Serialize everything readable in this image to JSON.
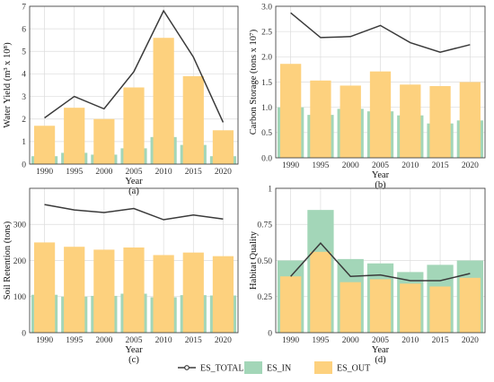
{
  "colors": {
    "es_in": "#a3d6b8",
    "es_out": "#fdd17e",
    "es_total": "#3a3a3a",
    "grid": "#dcdcdc",
    "panel_border": "#333333"
  },
  "legend": {
    "items": [
      {
        "label": "ES_TOTAL",
        "kind": "line"
      },
      {
        "label": "ES_IN",
        "kind": "box_in"
      },
      {
        "label": "ES_OUT",
        "kind": "box_out"
      }
    ]
  },
  "chart_data": [
    {
      "type": "bar",
      "panel_label": "(a)",
      "xlabel": "Year",
      "ylabel": "Water Yield (m³ x 10⁸)",
      "categories": [
        "1990",
        "1995",
        "2000",
        "2005",
        "2010",
        "2015",
        "2020"
      ],
      "ylim": [
        0,
        7
      ],
      "yticks": [
        0,
        1,
        2,
        3,
        4,
        5,
        6,
        7
      ],
      "ytick_labels": [
        "0",
        "1",
        "2",
        "3",
        "4",
        "5",
        "6",
        "7"
      ],
      "grid": true,
      "series": [
        {
          "name": "ES_IN",
          "kind": "bar",
          "values": [
            0.35,
            0.5,
            0.42,
            0.7,
            1.2,
            0.85,
            0.35
          ]
        },
        {
          "name": "ES_OUT",
          "kind": "bar",
          "values": [
            1.7,
            2.5,
            2.0,
            3.4,
            5.6,
            3.9,
            1.5
          ]
        },
        {
          "name": "ES_TOTAL",
          "kind": "line",
          "values": [
            2.05,
            3.0,
            2.45,
            4.1,
            6.8,
            4.75,
            1.85
          ]
        }
      ]
    },
    {
      "type": "bar",
      "panel_label": "(b)",
      "xlabel": "Year",
      "ylabel": "Carbon Storage (tons x 10⁷)",
      "categories": [
        "1990",
        "1995",
        "2000",
        "2005",
        "2010",
        "2015",
        "2020"
      ],
      "ylim": [
        0,
        3.0
      ],
      "yticks": [
        0,
        0.5,
        1.0,
        1.5,
        2.0,
        2.5,
        3.0
      ],
      "ytick_labels": [
        "0.0",
        "0.5",
        "1.0",
        "1.5",
        "2.0",
        "2.5",
        "3.0"
      ],
      "grid": true,
      "series": [
        {
          "name": "ES_IN",
          "kind": "bar",
          "values": [
            1.0,
            0.85,
            0.97,
            0.92,
            0.84,
            0.68,
            0.74
          ]
        },
        {
          "name": "ES_OUT",
          "kind": "bar",
          "values": [
            1.86,
            1.53,
            1.43,
            1.71,
            1.45,
            1.42,
            1.5
          ]
        },
        {
          "name": "ES_TOTAL",
          "kind": "line",
          "values": [
            2.87,
            2.38,
            2.4,
            2.62,
            2.28,
            2.09,
            2.24
          ]
        }
      ]
    },
    {
      "type": "bar",
      "panel_label": "(c)",
      "xlabel": "Year",
      "ylabel": "Soil Retention (tons)",
      "categories": [
        "1990",
        "1995",
        "2000",
        "2005",
        "2010",
        "2015",
        "2020"
      ],
      "ylim": [
        0,
        400
      ],
      "yticks": [
        0,
        100,
        200,
        300
      ],
      "ytick_labels": [
        "0",
        "100",
        "200",
        "300"
      ],
      "grid": true,
      "series": [
        {
          "name": "ES_IN",
          "kind": "bar",
          "values": [
            105,
            100,
            102,
            108,
            98,
            104,
            103
          ]
        },
        {
          "name": "ES_OUT",
          "kind": "bar",
          "values": [
            250,
            238,
            230,
            236,
            215,
            222,
            212
          ]
        },
        {
          "name": "ES_TOTAL",
          "kind": "line",
          "values": [
            355,
            340,
            333,
            344,
            313,
            326,
            315
          ]
        }
      ]
    },
    {
      "type": "bar",
      "panel_label": "(d)",
      "xlabel": "Year",
      "ylabel": "Habitat Quality",
      "categories": [
        "1990",
        "1995",
        "2000",
        "2005",
        "2010",
        "2015",
        "2020"
      ],
      "ylim": [
        0,
        1.0
      ],
      "yticks": [
        0,
        0.25,
        0.5,
        0.75,
        1.0
      ],
      "ytick_labels": [
        "0",
        "0.25",
        "0.50",
        "0.75",
        "1"
      ],
      "grid": true,
      "series": [
        {
          "name": "ES_IN",
          "kind": "bar",
          "values": [
            0.5,
            0.85,
            0.51,
            0.48,
            0.42,
            0.47,
            0.5
          ]
        },
        {
          "name": "ES_OUT",
          "kind": "bar",
          "values": [
            0.39,
            0.56,
            0.35,
            0.37,
            0.34,
            0.32,
            0.38
          ]
        },
        {
          "name": "ES_TOTAL",
          "kind": "line",
          "values": [
            0.39,
            0.62,
            0.39,
            0.4,
            0.36,
            0.36,
            0.41
          ]
        }
      ]
    }
  ]
}
